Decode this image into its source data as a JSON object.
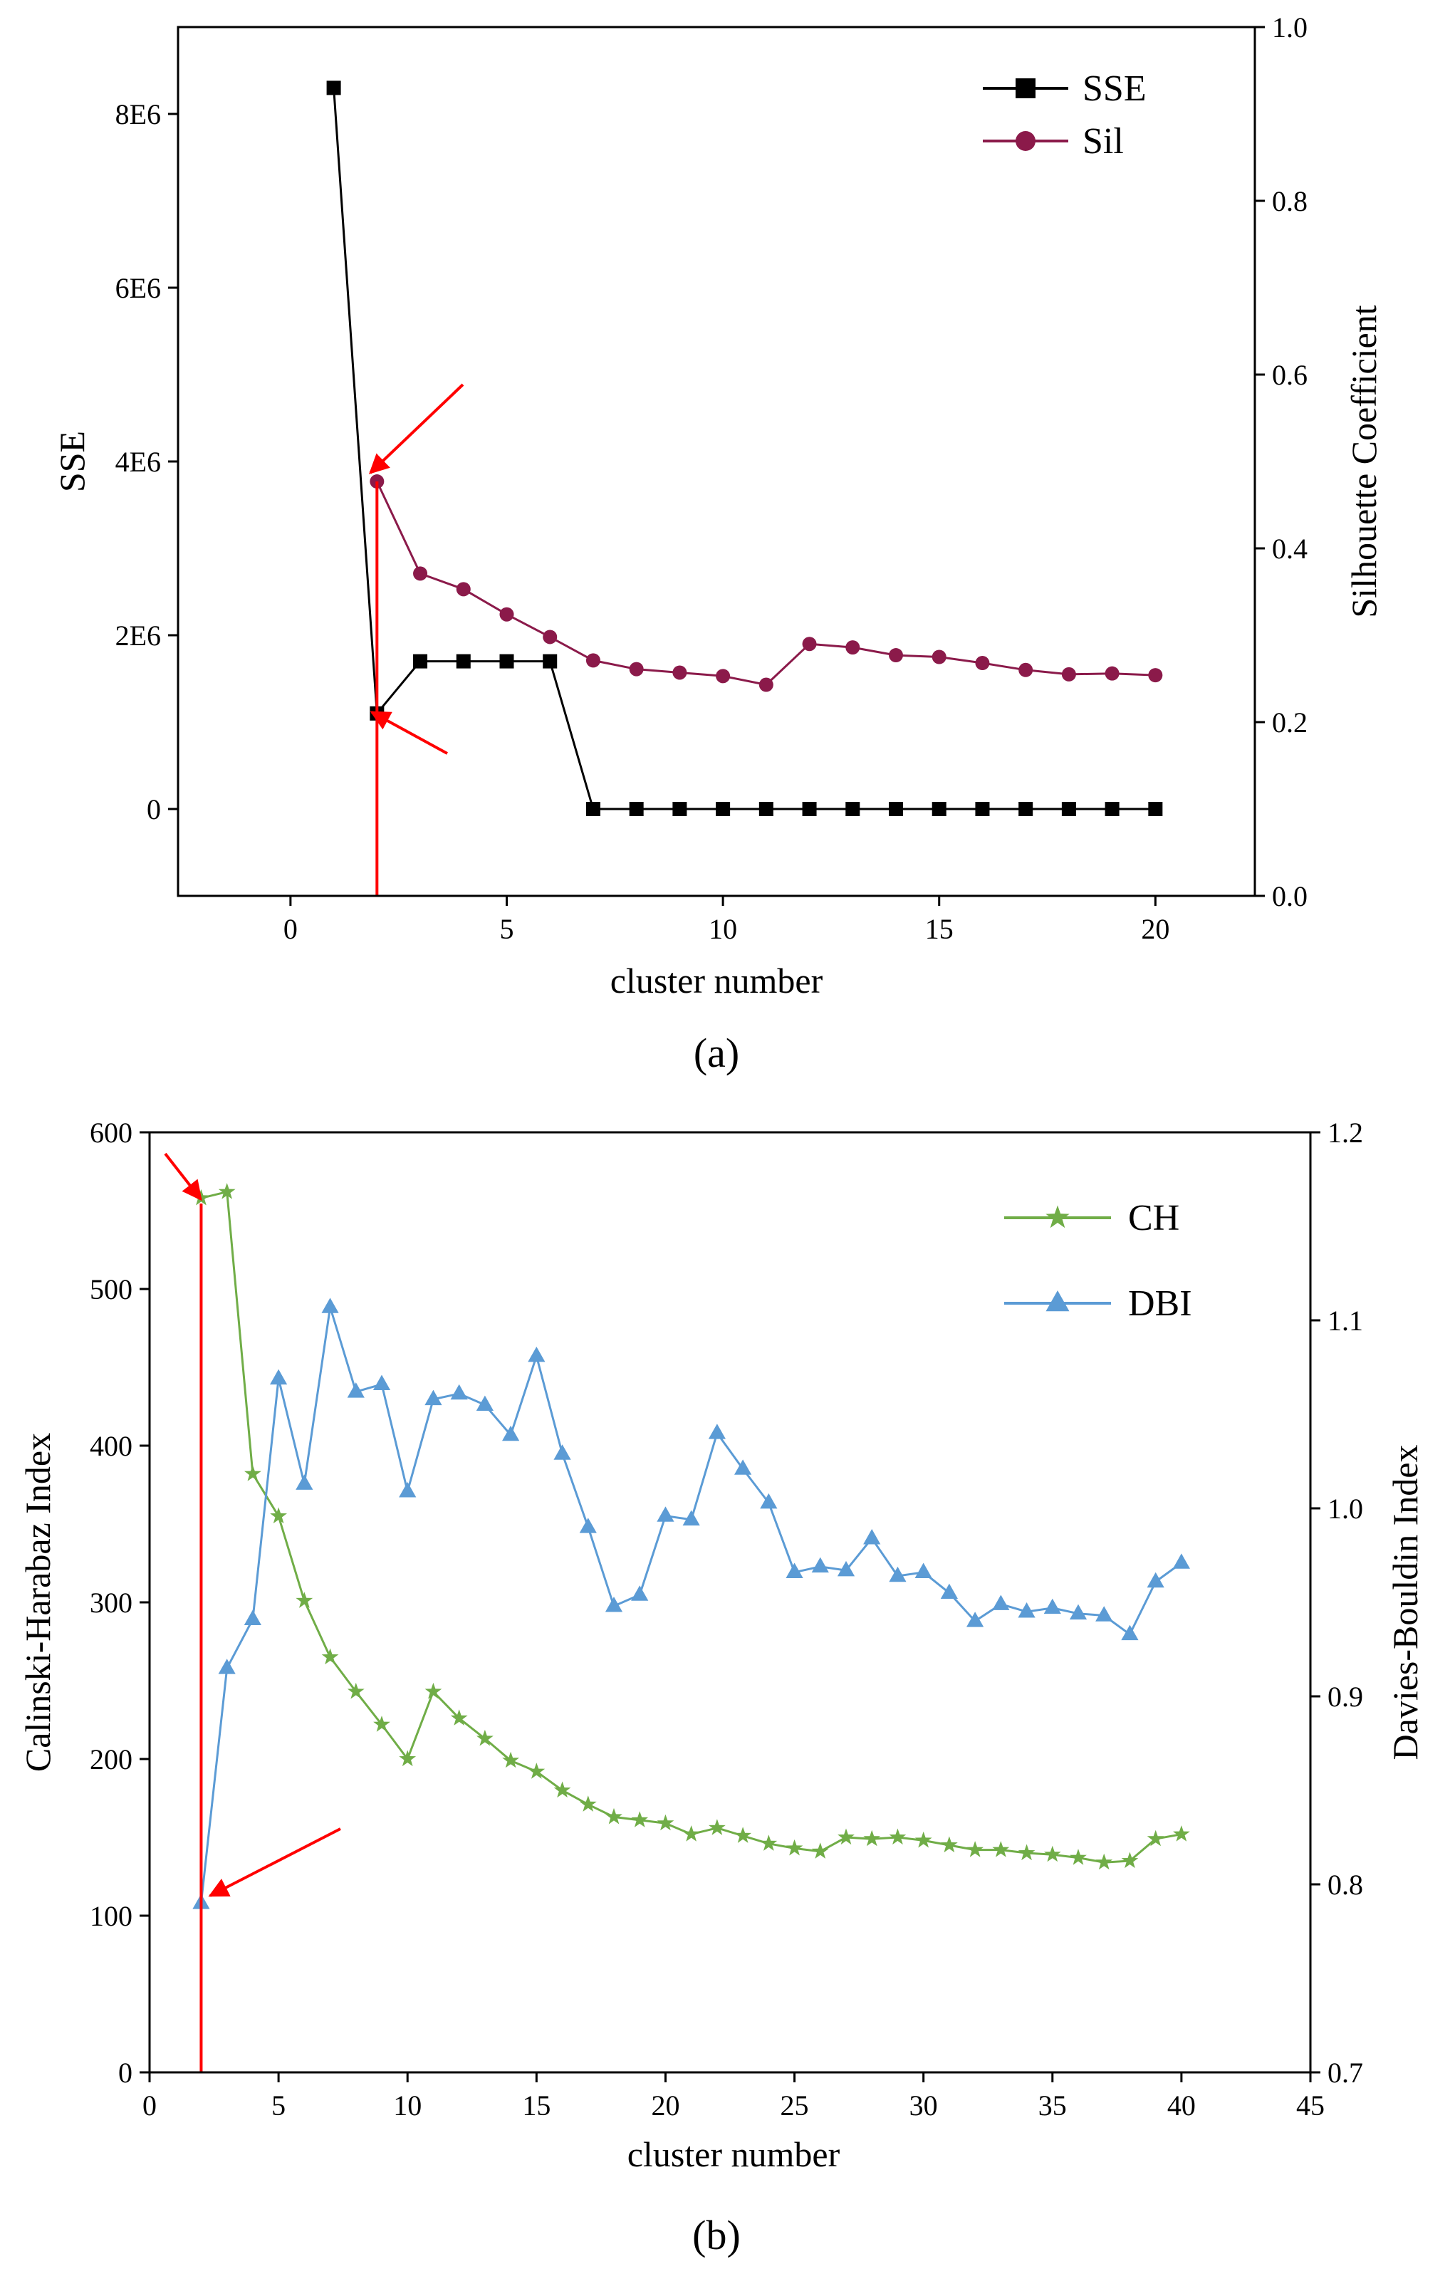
{
  "chart_data": [
    {
      "panel_label": "(a)",
      "type": "line",
      "xlabel": "cluster number",
      "ylabel_left": "SSE",
      "ylabel_right": "Silhouette Coefficient",
      "xlim": [
        -2.6,
        22.3
      ],
      "ylim_left": [
        -1000000,
        9000000
      ],
      "ylim_right": [
        0.0,
        1.0
      ],
      "xticks": [
        0,
        5,
        10,
        15,
        20
      ],
      "yticks_left": [
        0,
        2000000,
        4000000,
        6000000,
        8000000
      ],
      "yticklabels_left": [
        "0",
        "2E6",
        "4E6",
        "6E6",
        "8E6"
      ],
      "yticks_right": [
        0.0,
        0.2,
        0.4,
        0.6,
        0.8,
        1.0
      ],
      "yticklabels_right": [
        "0.0",
        "0.2",
        "0.4",
        "0.6",
        "0.8",
        "1.0"
      ],
      "grid": false,
      "legend_position": "top-right",
      "series": [
        {
          "name": "SSE",
          "axis": "left",
          "color": "#000000",
          "marker": "square",
          "x": [
            1,
            2,
            3,
            4,
            5,
            6,
            7,
            8,
            9,
            10,
            11,
            12,
            13,
            14,
            15,
            16,
            17,
            18,
            19,
            20
          ],
          "y": [
            8300000,
            1100000,
            1700000,
            1700000,
            1700000,
            1700000,
            0,
            0,
            0,
            0,
            0,
            0,
            0,
            0,
            0,
            0,
            0,
            0,
            0,
            0
          ]
        },
        {
          "name": "Sil",
          "axis": "right",
          "color": "#8b1a4a",
          "marker": "circle",
          "x": [
            2,
            3,
            4,
            5,
            6,
            7,
            8,
            9,
            10,
            11,
            12,
            13,
            14,
            15,
            16,
            17,
            18,
            19,
            20
          ],
          "y": [
            0.477,
            0.371,
            0.353,
            0.324,
            0.298,
            0.271,
            0.261,
            0.257,
            0.253,
            0.243,
            0.29,
            0.286,
            0.277,
            0.275,
            0.268,
            0.26,
            0.255,
            0.256,
            0.254
          ]
        }
      ],
      "annotations": {
        "vertical_line_x": 2,
        "arrow_color": "#ff0000"
      }
    },
    {
      "panel_label": "(b)",
      "type": "line",
      "xlabel": "cluster number",
      "ylabel_left": "Calinski-Harabaz Index",
      "ylabel_right": "Davies-Bouldin Index",
      "xlim": [
        0,
        45
      ],
      "ylim_left": [
        0,
        600
      ],
      "ylim_right": [
        0.7,
        1.2
      ],
      "xticks": [
        0,
        5,
        10,
        15,
        20,
        25,
        30,
        35,
        40,
        45
      ],
      "yticks_left": [
        0,
        100,
        200,
        300,
        400,
        500,
        600
      ],
      "yticks_right": [
        0.7,
        0.8,
        0.9,
        1.0,
        1.1,
        1.2
      ],
      "yticklabels_right": [
        "0.7",
        "0.8",
        "0.9",
        "1.0",
        "1.1",
        "1.2"
      ],
      "grid": false,
      "legend_position": "top-right",
      "series": [
        {
          "name": "CH",
          "axis": "left",
          "color": "#70ad47",
          "marker": "star",
          "x": [
            2,
            3,
            4,
            5,
            6,
            7,
            8,
            9,
            10,
            11,
            12,
            13,
            14,
            15,
            16,
            17,
            18,
            19,
            20,
            21,
            22,
            23,
            24,
            25,
            26,
            27,
            28,
            29,
            30,
            31,
            32,
            33,
            34,
            35,
            36,
            37,
            38,
            39,
            40
          ],
          "y": [
            558,
            562,
            382,
            355,
            301,
            265,
            243,
            222,
            200,
            243,
            226,
            213,
            199,
            192,
            180,
            171,
            163,
            161,
            159,
            152,
            156,
            151,
            146,
            143,
            141,
            150,
            149,
            150,
            148,
            145,
            142,
            142,
            140,
            139,
            137,
            134,
            135,
            149,
            152
          ]
        },
        {
          "name": "DBI",
          "axis": "right",
          "color": "#5b9bd5",
          "marker": "triangle",
          "x": [
            2,
            3,
            4,
            5,
            6,
            7,
            8,
            9,
            10,
            11,
            12,
            13,
            14,
            15,
            16,
            17,
            18,
            19,
            20,
            21,
            22,
            23,
            24,
            25,
            26,
            27,
            28,
            29,
            30,
            31,
            32,
            33,
            34,
            35,
            36,
            37,
            38,
            39,
            40
          ],
          "y": [
            0.79,
            0.915,
            0.941,
            1.069,
            1.013,
            1.107,
            1.062,
            1.066,
            1.009,
            1.058,
            1.061,
            1.055,
            1.039,
            1.081,
            1.029,
            0.99,
            0.948,
            0.954,
            0.996,
            0.994,
            1.04,
            1.021,
            1.003,
            0.966,
            0.969,
            0.967,
            0.984,
            0.964,
            0.966,
            0.955,
            0.94,
            0.949,
            0.945,
            0.947,
            0.944,
            0.943,
            0.933,
            0.961,
            0.971
          ]
        }
      ],
      "annotations": {
        "vertical_line_x": 2,
        "arrow_color": "#ff0000"
      }
    }
  ]
}
